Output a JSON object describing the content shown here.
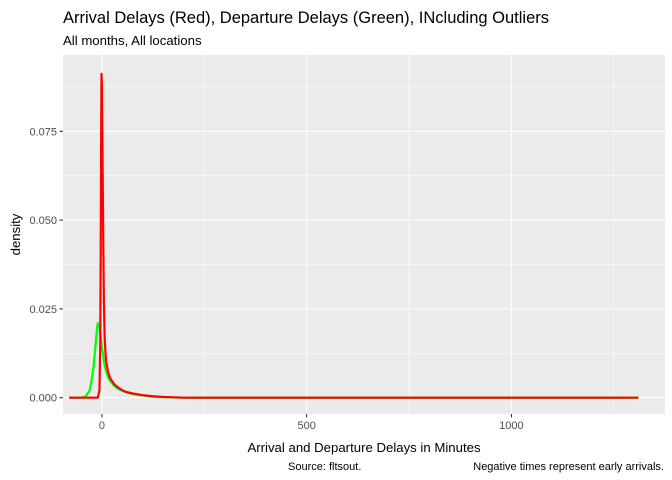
{
  "chart_data": {
    "type": "line",
    "title": "Arrival Delays (Red), Departure Delays (Green), INcluding Outliers",
    "subtitle": "All months, All locations",
    "xlabel": "Arrival and Departure Delays in Minutes",
    "ylabel": "density",
    "xlim": [
      -95,
      1375
    ],
    "ylim": [
      -0.0046,
      0.0965
    ],
    "x_ticks": [
      0,
      500,
      1000
    ],
    "x_tick_labels": [
      "0",
      "500",
      "1000"
    ],
    "y_ticks": [
      0,
      0.025,
      0.05,
      0.075
    ],
    "y_tick_labels": [
      "0.000",
      "0.025",
      "0.050",
      "0.075"
    ],
    "grid": true,
    "background": "#EBEBEB",
    "captions": [
      "Source: fltsout.",
      "Negative times represent early arrivals."
    ],
    "series": [
      {
        "color": "#00FF00",
        "x": [
          -80,
          -50,
          -40,
          -30,
          -25,
          -20,
          -15,
          -12,
          -10,
          -7,
          -5,
          -2,
          0,
          3,
          5,
          10,
          15,
          20,
          30,
          40,
          50,
          60,
          75,
          100,
          125,
          150,
          200,
          300,
          500,
          800,
          1310
        ],
        "y": [
          0,
          0,
          0.0003,
          0.002,
          0.005,
          0.009,
          0.0155,
          0.0195,
          0.021,
          0.0203,
          0.019,
          0.0165,
          0.014,
          0.012,
          0.01,
          0.0075,
          0.0058,
          0.0047,
          0.0033,
          0.0025,
          0.0019,
          0.0015,
          0.001,
          0.0006,
          0.0003,
          0.00015,
          0,
          0,
          0,
          0,
          0
        ]
      },
      {
        "color": "#FF0000",
        "x": [
          -80,
          -10,
          -6,
          -4,
          -3,
          -2,
          -1,
          0,
          1,
          2,
          3,
          4,
          5,
          7,
          10,
          15,
          20,
          30,
          40,
          50,
          60,
          75,
          100,
          125,
          150,
          175,
          200,
          300,
          500,
          800,
          1310
        ],
        "y": [
          0,
          0,
          0.002,
          0.015,
          0.04,
          0.07,
          0.0912,
          0.088,
          0.075,
          0.062,
          0.048,
          0.036,
          0.026,
          0.016,
          0.0105,
          0.0072,
          0.0055,
          0.0038,
          0.0028,
          0.0021,
          0.0016,
          0.0012,
          0.0007,
          0.0004,
          0.0002,
          0.0001,
          0,
          0,
          0,
          0,
          0
        ]
      }
    ]
  }
}
